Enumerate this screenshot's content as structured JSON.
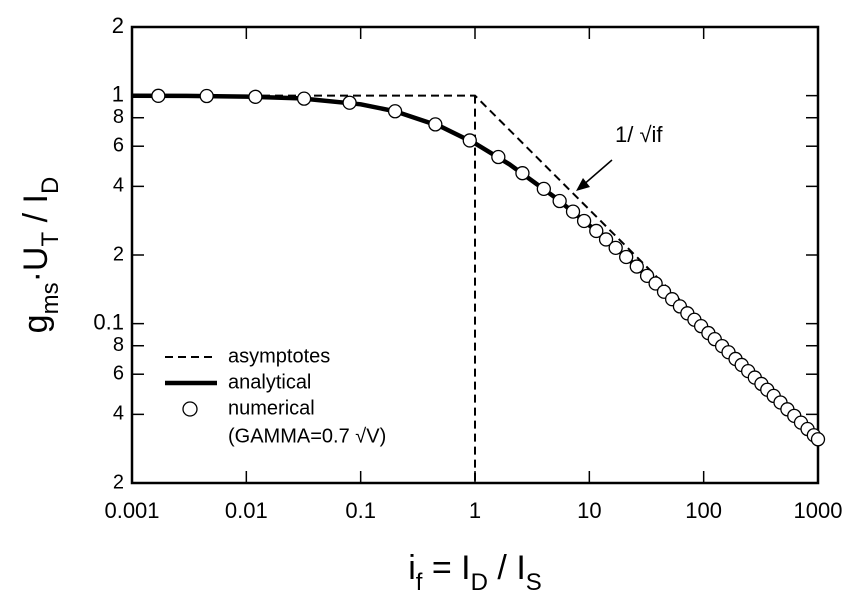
{
  "chart_data": {
    "type": "line",
    "xscale": "log",
    "yscale": "log",
    "xlabel_parts": [
      "i",
      "f",
      " = I",
      "D",
      " / I",
      "S"
    ],
    "ylabel_parts": [
      "g",
      "ms",
      "·U",
      "T",
      " / I",
      "D"
    ],
    "xlim": [
      0.001,
      1000
    ],
    "xticks": [
      0.001,
      0.01,
      0.1,
      1,
      10,
      100,
      1000
    ],
    "ylim": [
      0.02,
      2
    ],
    "yticks": [
      2,
      1,
      {
        "value": 0.8,
        "label": "8"
      },
      {
        "value": 0.6,
        "label": "6"
      },
      {
        "value": 0.4,
        "label": "4"
      },
      {
        "value": 0.2,
        "label": "2"
      },
      0.1,
      {
        "value": 0.08,
        "label": "8"
      },
      {
        "value": 0.06,
        "label": "6"
      },
      {
        "value": 0.04,
        "label": "4"
      },
      {
        "value": 0.02,
        "label": "2"
      }
    ],
    "legend": "lower left",
    "legend_note": "(GAMMA=0.7 √V)",
    "annotation": "1/ √if",
    "series": [
      {
        "name": "asymptotes",
        "color": "#000000",
        "style": "dashed",
        "x": [
          0.001,
          1,
          1000,
          1,
          1,
          1
        ],
        "values": [
          1,
          1,
          0.0316,
          null,
          1,
          0.02
        ]
      },
      {
        "name": "analytical",
        "color": "#000000",
        "style": "solid",
        "x": [
          0.001,
          0.003,
          0.01,
          0.03,
          0.1,
          0.2,
          0.5,
          1,
          2,
          5,
          10,
          20,
          50,
          100,
          200,
          500,
          1000
        ],
        "values": [
          0.999,
          0.997,
          0.99,
          0.972,
          0.916,
          0.854,
          0.732,
          0.618,
          0.5,
          0.358,
          0.27,
          0.2,
          0.132,
          0.0951,
          0.0683,
          0.0437,
          0.0311
        ]
      },
      {
        "name": "numerical",
        "color": "#000000",
        "style": "markers",
        "x": [
          0.0017,
          0.0045,
          0.012,
          0.032,
          0.08,
          0.2,
          0.45,
          0.9,
          1.6,
          2.6,
          4,
          5.5,
          7.2,
          9,
          11.5,
          14,
          17,
          21,
          26,
          32,
          38,
          45,
          53,
          62,
          72,
          83,
          95,
          110,
          125,
          145,
          165,
          190,
          215,
          245,
          280,
          320,
          360,
          410,
          470,
          540,
          620,
          710,
          810,
          920,
          1000
        ],
        "values": [
          0.998,
          0.996,
          0.988,
          0.97,
          0.931,
          0.854,
          0.748,
          0.636,
          0.538,
          0.457,
          0.39,
          0.345,
          0.31,
          0.282,
          0.255,
          0.234,
          0.215,
          0.196,
          0.178,
          0.162,
          0.15,
          0.138,
          0.128,
          0.119,
          0.111,
          0.104,
          0.0975,
          0.0909,
          0.0855,
          0.0797,
          0.0749,
          0.07,
          0.0659,
          0.0619,
          0.058,
          0.0544,
          0.0513,
          0.0482,
          0.0451,
          0.0421,
          0.0394,
          0.0368,
          0.0345,
          0.0324,
          0.0311
        ]
      }
    ]
  }
}
